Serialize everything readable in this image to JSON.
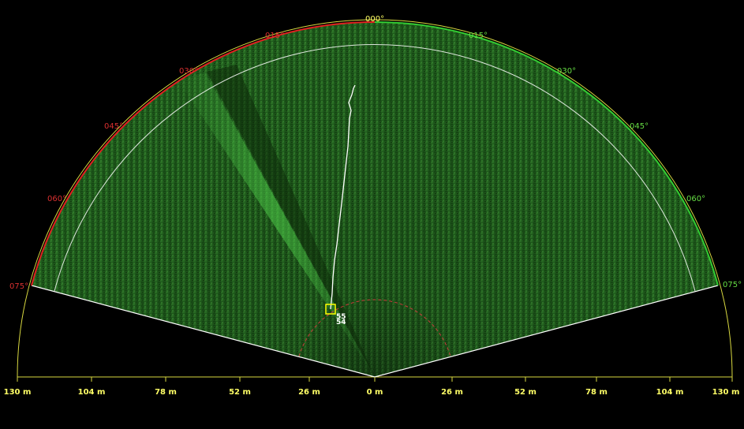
{
  "sonar": {
    "bearing_labels": {
      "left": [
        "075°",
        "060°",
        "045°",
        "030°",
        "015°"
      ],
      "center": "000°",
      "right": [
        "015°",
        "030°",
        "045°",
        "060°",
        "075°"
      ]
    },
    "range_labels": {
      "left": [
        "130 m",
        "104 m",
        "78 m",
        "52 m",
        "26 m"
      ],
      "center": "0 m",
      "right": [
        "26 m",
        "52 m",
        "78 m",
        "104 m",
        "130 m"
      ]
    },
    "target": {
      "id_top": "55",
      "id_bottom": "54"
    },
    "colors": {
      "background": "#000000",
      "echo_base": "#1f5a1c",
      "port_arc": "#e02020",
      "starboard_arc": "#33cc33",
      "port_label": "#d93030",
      "starboard_label": "#66dd44",
      "center_label": "#ffff66",
      "range_axis": "#d8d840",
      "range_rings": "#ffffff",
      "track": "#ffffff",
      "target_box": "#ffff00",
      "guard_ring": "#c83c3c"
    }
  }
}
